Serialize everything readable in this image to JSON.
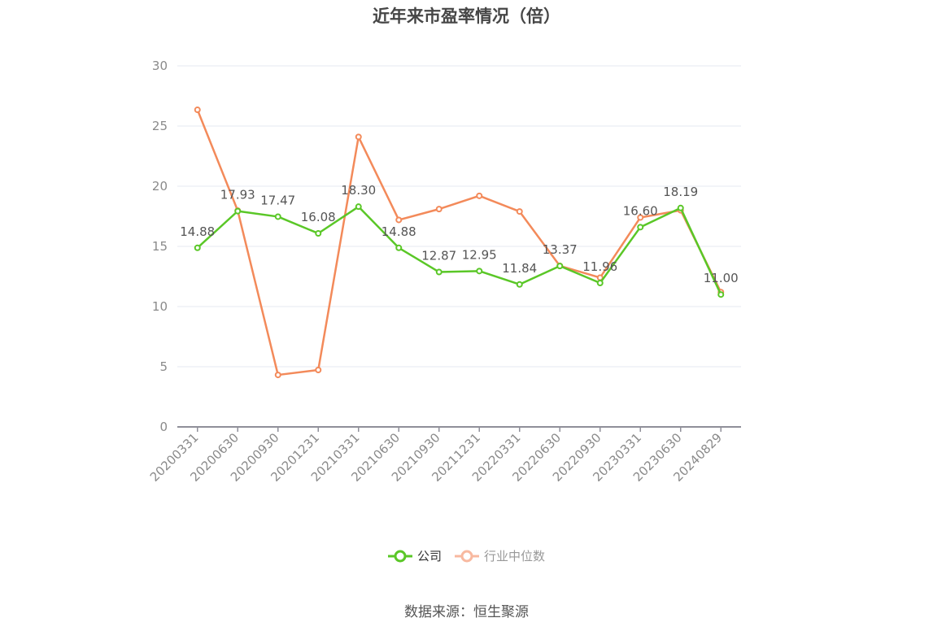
{
  "title": "近年来市盈率情况（倍）",
  "legend": {
    "company": "公司",
    "industry": "行业中位数"
  },
  "source": "数据来源：恒生聚源",
  "colors": {
    "company": "#5ac727",
    "industry": "#f38a5a",
    "industry_legend": "#f8b9a0",
    "grid": "#e6e9f2",
    "axis": "#8f8f99",
    "tick_text": "#8a8a8a",
    "label_text": "#555555"
  },
  "chart_data": {
    "type": "line",
    "title": "近年来市盈率情况（倍）",
    "xlabel": "",
    "ylabel": "",
    "ylim": [
      0,
      30
    ],
    "yticks": [
      0,
      5,
      10,
      15,
      20,
      25,
      30
    ],
    "grid": true,
    "legend_position": "bottom",
    "categories": [
      "20200331",
      "20200630",
      "20200930",
      "20201231",
      "20210331",
      "20210630",
      "20210930",
      "20211231",
      "20220331",
      "20220630",
      "20220930",
      "20230331",
      "20230630",
      "20240829"
    ],
    "series": [
      {
        "name": "公司",
        "values": [
          14.88,
          17.93,
          17.47,
          16.08,
          18.3,
          14.88,
          12.87,
          12.95,
          11.84,
          13.37,
          11.96,
          16.6,
          18.19,
          11.0
        ],
        "labels_shown": true
      },
      {
        "name": "行业中位数",
        "values": [
          26.35,
          17.97,
          4.32,
          4.73,
          24.1,
          17.2,
          18.1,
          19.2,
          17.9,
          13.38,
          12.4,
          17.4,
          18.0,
          11.2
        ],
        "labels_shown": false
      }
    ]
  }
}
